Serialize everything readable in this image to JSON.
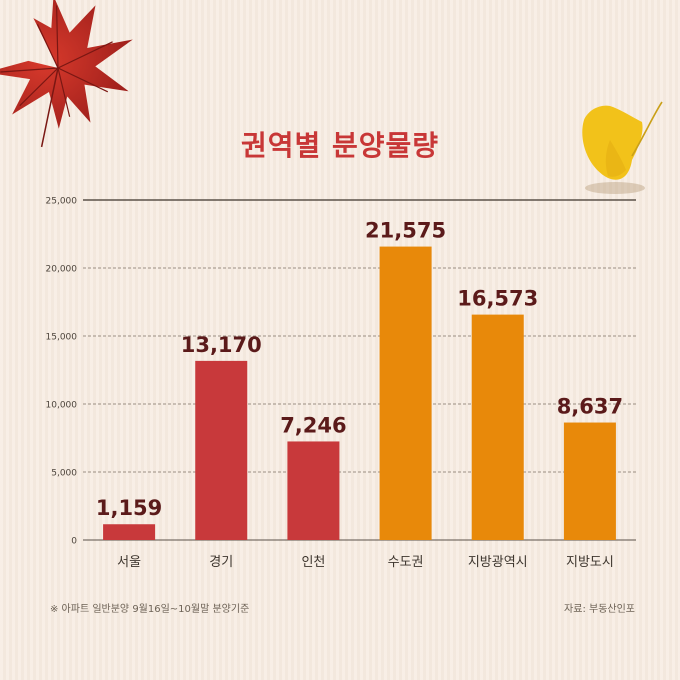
{
  "title": "권역별 분양물량",
  "chart_data": {
    "type": "bar",
    "categories": [
      "서울",
      "경기",
      "인천",
      "수도권",
      "지방광역시",
      "지방도시"
    ],
    "values": [
      1159,
      13170,
      7246,
      21575,
      16573,
      8637
    ],
    "value_labels": [
      "1,159",
      "13,170",
      "7,246",
      "21,575",
      "16,573",
      "8,637"
    ],
    "bar_colors": [
      "#c8393b",
      "#c8393b",
      "#c8393b",
      "#e8890a",
      "#e8890a",
      "#e8890a"
    ],
    "ylim": [
      0,
      25000
    ],
    "yticks": [
      0,
      5000,
      10000,
      15000,
      20000,
      25000
    ],
    "ytick_labels": [
      "0",
      "5,000",
      "10,000",
      "15,000",
      "20,000",
      "25,000"
    ],
    "grid": true,
    "grid_style": "dashed",
    "title": "권역별 분양물량",
    "xlabel": "",
    "ylabel": ""
  },
  "footnote": "※ 아파트 일반분양 9월16일~10월말 분양기준",
  "source": "자료: 부동산인포",
  "colors": {
    "title": "#c83737",
    "red_bar": "#c8393b",
    "orange_bar": "#e8890a",
    "label": "#5b1a1a"
  },
  "decorations": [
    "maple-leaf-icon",
    "ginkgo-leaf-icon"
  ]
}
